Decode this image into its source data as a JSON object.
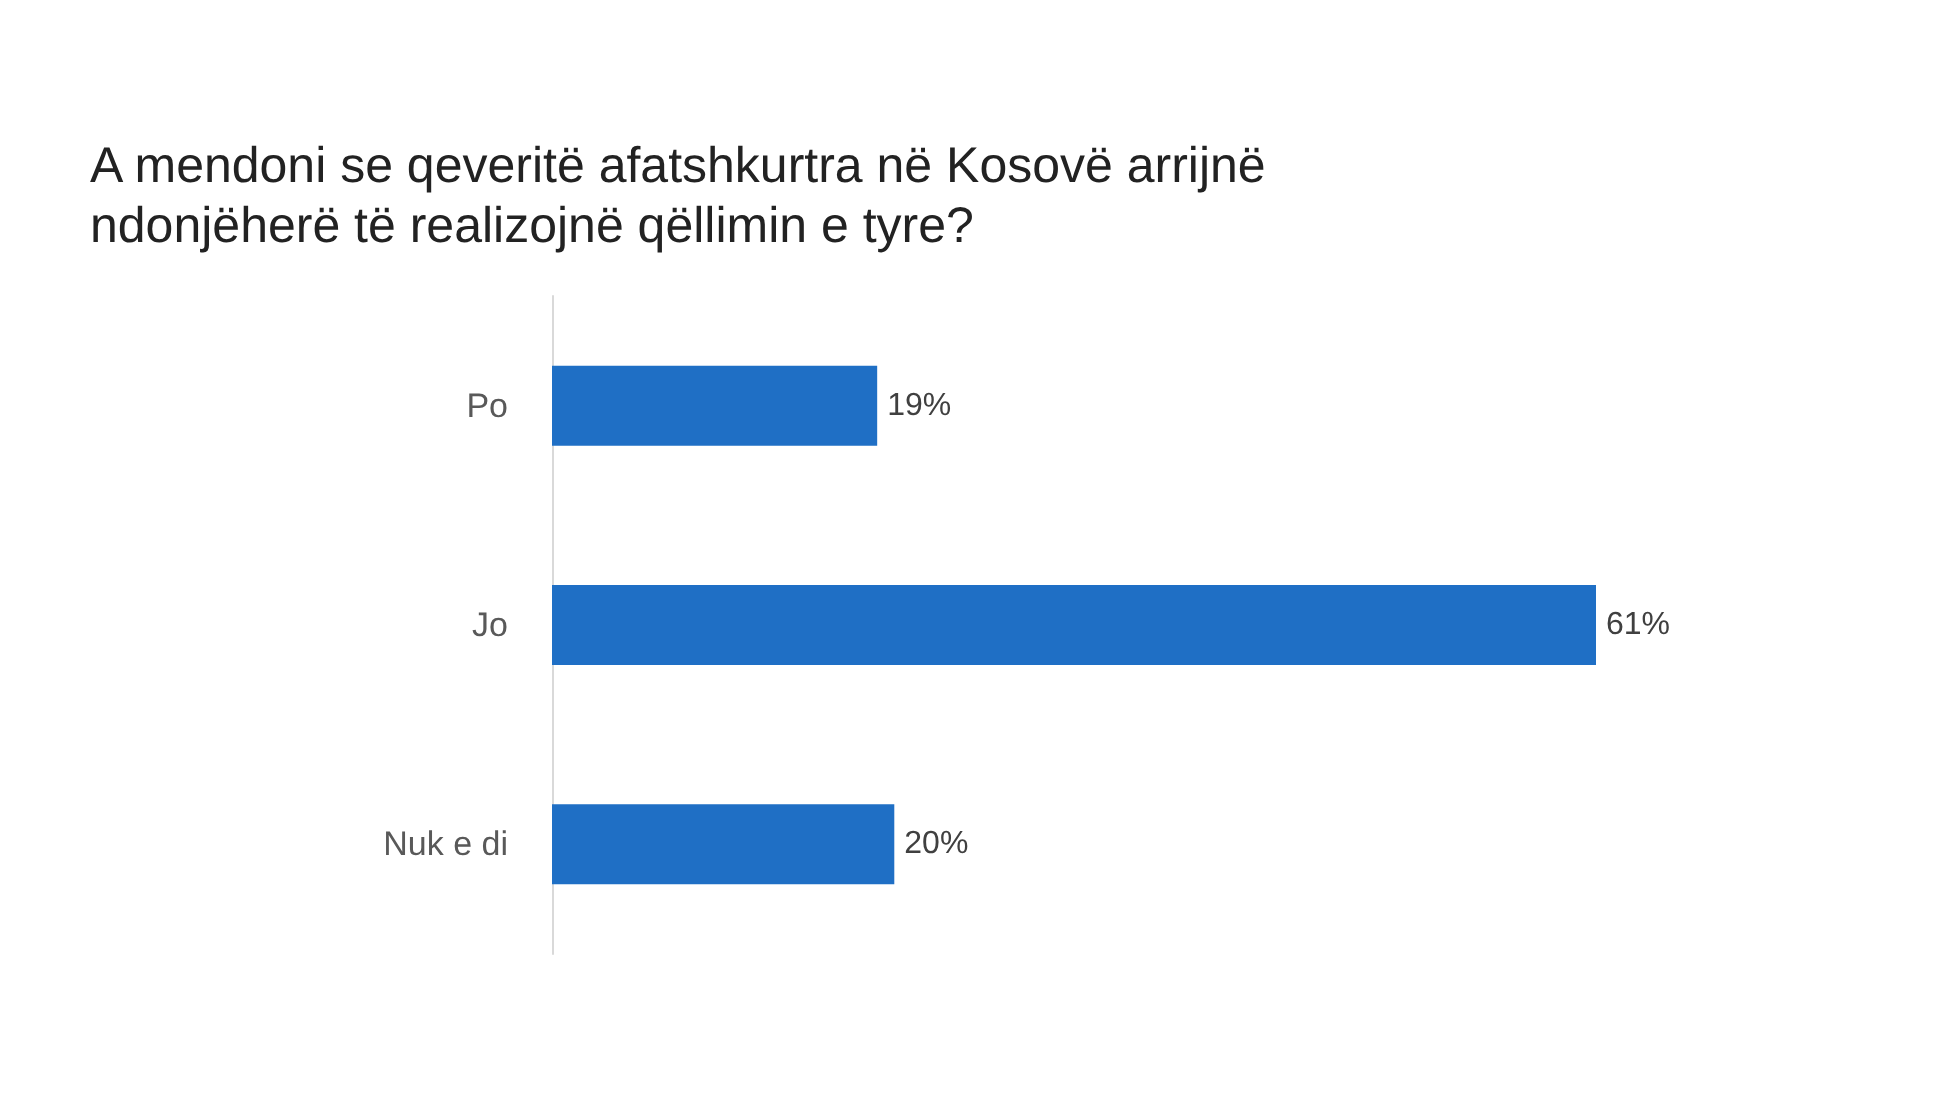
{
  "chart_data": {
    "type": "bar",
    "orientation": "horizontal",
    "title": "A mendoni se qeveritë afatshkurtra në Kosovë arrijnë ndonjëherë të realizojnë qëllimin e tyre?",
    "categories": [
      "Po",
      "Jo",
      "Nuk e di"
    ],
    "values": [
      19,
      61,
      20
    ],
    "value_labels": [
      "19%",
      "61%",
      "20%"
    ],
    "color": "#1f6fc5"
  }
}
